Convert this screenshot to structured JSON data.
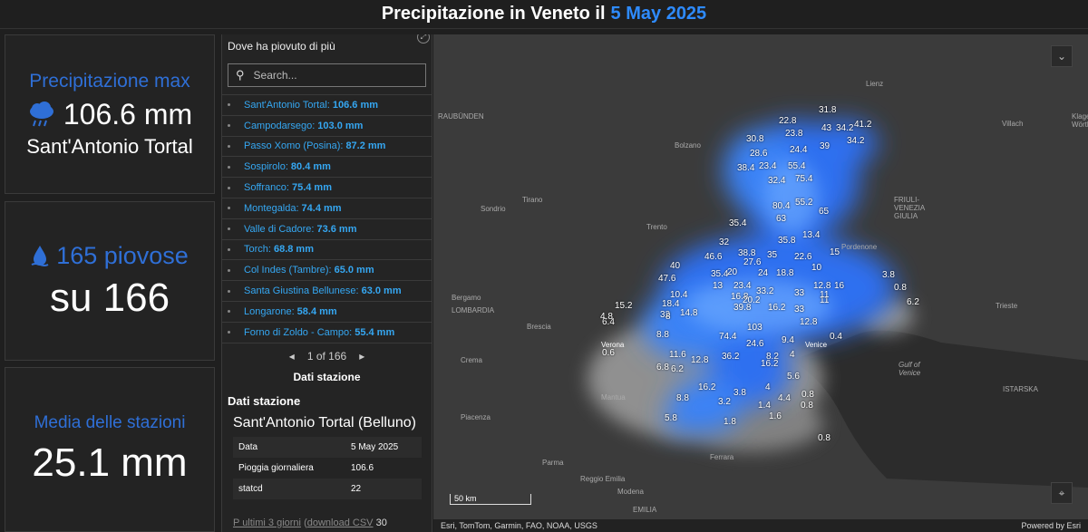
{
  "header": {
    "title_prefix": "Precipitazione in Veneto il",
    "date": "5 May 2025"
  },
  "cards": {
    "max": {
      "label": "Precipitazione max",
      "value": "106.6 mm",
      "station": "Sant'Antonio Tortal"
    },
    "rainy": {
      "value": "165 piovose",
      "total": "su 166"
    },
    "mean": {
      "label": "Media delle stazioni",
      "value": "25.1 mm"
    }
  },
  "list": {
    "title": "Dove ha piovuto di più",
    "search_placeholder": "Search...",
    "items": [
      {
        "name": "Sant'Antonio Tortal:",
        "value": "106.6 mm"
      },
      {
        "name": "Campodarsego:",
        "value": "103.0 mm"
      },
      {
        "name": "Passo Xomo (Posina):",
        "value": "87.2 mm"
      },
      {
        "name": "Sospirolo:",
        "value": "80.4 mm"
      },
      {
        "name": "Soffranco:",
        "value": "75.4 mm"
      },
      {
        "name": "Montegalda:",
        "value": "74.4 mm"
      },
      {
        "name": "Valle di Cadore:",
        "value": "73.6 mm"
      },
      {
        "name": "Torch:",
        "value": "68.8 mm"
      },
      {
        "name": "Col Indes (Tambre):",
        "value": "65.0 mm"
      },
      {
        "name": "Santa Giustina Bellunese:",
        "value": "63.0 mm"
      },
      {
        "name": "Longarone:",
        "value": "58.4 mm"
      },
      {
        "name": "Forno di Zoldo - Campo:",
        "value": "55.4 mm"
      }
    ],
    "pager": "1 of 166",
    "section_title": "Dati stazione"
  },
  "detail": {
    "heading": "Dati stazione",
    "station": "Sant'Antonio Tortal (Belluno)",
    "rows": [
      {
        "key": "Data",
        "value": "5 May 2025"
      },
      {
        "key": "Pioggia giornaliera",
        "value": "106.6"
      },
      {
        "key": "statcd",
        "value": "22"
      }
    ],
    "link1": "P ultimi 3 giorni",
    "paren": "(",
    "link2": "download CSV",
    "tail": "30"
  },
  "map": {
    "attribution": "Esri, TomTom, Garmin, FAO, NOAA, USGS",
    "powered": "Powered by Esri",
    "scale": "50 km",
    "places": [
      "RAUBÜNDEN",
      "Bolzano",
      "Lienz",
      "Villach",
      "Klagenfurt Wörther",
      "Tirano",
      "Sondrio",
      "Trento",
      "FRIULI-VENEZIA GIULIA",
      "Pordenone",
      "Bergamo",
      "LOMBARDIA",
      "Brescia",
      "Trieste",
      "Crema",
      "Verona",
      "Venice",
      "Gulf of Venice",
      "ISTARSKA",
      "Mantua",
      "Piacenza",
      "Parma",
      "Ferrara",
      "Reggio Emilia",
      "Modena",
      "EMILIA"
    ],
    "values": [
      "31.8",
      "22.8",
      "43",
      "34.2",
      "41.2",
      "23.8",
      "34.2",
      "30.8",
      "24.4",
      "39",
      "28.6",
      "38.4",
      "23.4",
      "55.4",
      "32.4",
      "75.4",
      "80.4",
      "55.2",
      "63",
      "65",
      "35.4",
      "35.8",
      "32",
      "13.4",
      "15",
      "46.6",
      "38.8",
      "27.6",
      "35",
      "22.6",
      "10",
      "40",
      "35.4",
      "20",
      "24",
      "18.8",
      "12.8",
      "47.6",
      "13",
      "23.4",
      "33.2",
      "33",
      "16",
      "3.8",
      "32",
      "10.4",
      "16.8",
      "39.8",
      "20.2",
      "11",
      "18.4",
      "16.2",
      "15.2",
      "14.8",
      "8",
      "33",
      "12.8",
      "11",
      "0.8",
      "6.2",
      "6.4",
      "4.8",
      "103",
      "9.4",
      "0.4",
      "0.6",
      "8.8",
      "74.4",
      "24.6",
      "8.2",
      "11.6",
      "36.2",
      "16.2",
      "4",
      "6.8",
      "12.8",
      "6.2",
      "5.6",
      "16.2",
      "4.4",
      "4",
      "0.8",
      "8.8",
      "3.2",
      "3.8",
      "1.4",
      "1.6",
      "0.8",
      "5.8",
      "1.8",
      "0.8"
    ]
  }
}
